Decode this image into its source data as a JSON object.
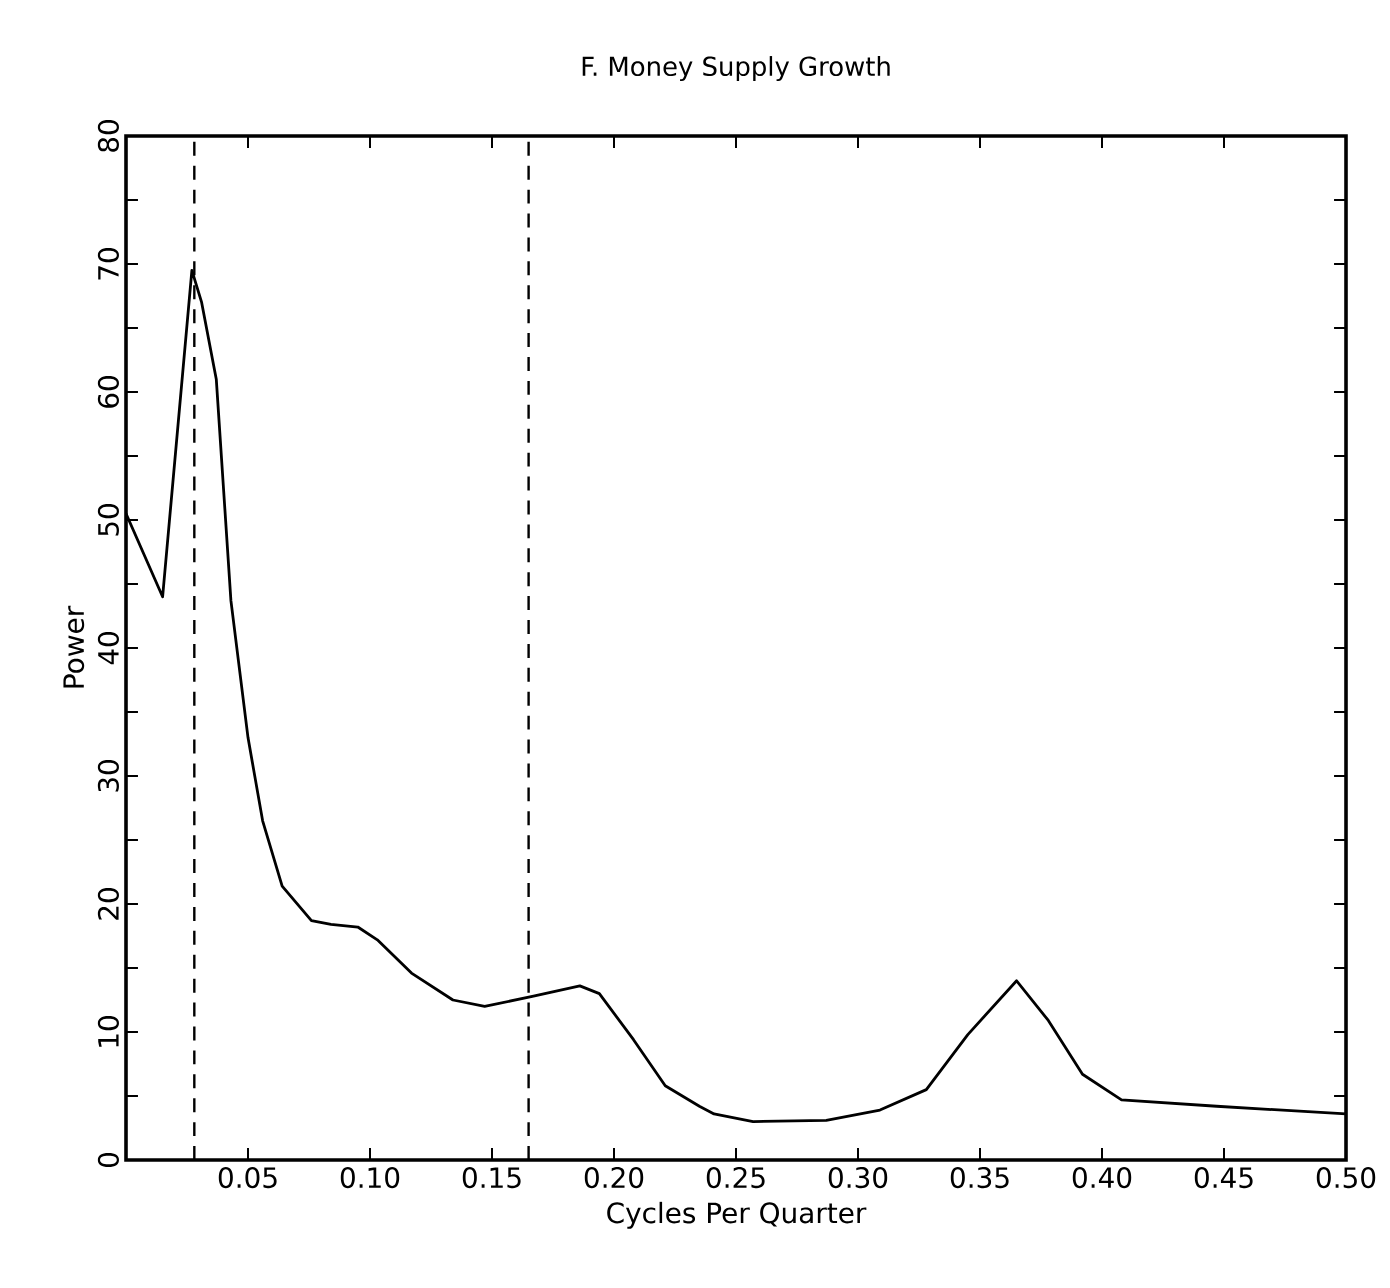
{
  "chart_data": {
    "type": "line",
    "title": "F. Money Supply Growth",
    "xlabel": "Cycles Per Quarter",
    "ylabel": "Power",
    "x": [
      0,
      0.015,
      0.027,
      0.031,
      0.037,
      0.043,
      0.05,
      0.056,
      0.064,
      0.076,
      0.084,
      0.095,
      0.103,
      0.117,
      0.134,
      0.147,
      0.167,
      0.186,
      0.194,
      0.208,
      0.221,
      0.235,
      0.241,
      0.257,
      0.287,
      0.309,
      0.328,
      0.345,
      0.365,
      0.378,
      0.392,
      0.408,
      0.447,
      0.5
    ],
    "series": [
      {
        "color": "#000000",
        "values": [
          50.5,
          44,
          69.5,
          67,
          61,
          43.7,
          33,
          26.5,
          21.4,
          18.7,
          18.4,
          18.2,
          17.2,
          14.6,
          12.5,
          12,
          12.8,
          13.6,
          13,
          9.4,
          5.8,
          4.2,
          3.6,
          3.0,
          3.1,
          3.9,
          5.5,
          9.8,
          14,
          10.9,
          6.7,
          4.7,
          4.2,
          3.6
        ]
      }
    ],
    "xlim": [
      0,
      0.5
    ],
    "ylim": [
      0,
      80
    ],
    "xticks": [
      0.05,
      {
        "value": 0.1,
        "label": "0.10"
      },
      0.15,
      {
        "value": 0.2,
        "label": "0.20"
      },
      0.25,
      {
        "value": 0.3,
        "label": "0.30"
      },
      0.35,
      {
        "value": 0.4,
        "label": "0.40"
      },
      0.45,
      {
        "value": 0.5,
        "label": "0.50"
      }
    ],
    "yticks": [
      0,
      {
        "value": 5,
        "label": null
      },
      10,
      {
        "value": 15,
        "label": null
      },
      20,
      {
        "value": 25,
        "label": null
      },
      30,
      {
        "value": 35,
        "label": null
      },
      40,
      {
        "value": 45,
        "label": null
      },
      50,
      {
        "value": 55,
        "label": null
      },
      60,
      {
        "value": 65,
        "label": null
      },
      70,
      {
        "value": 75,
        "label": null
      },
      80
    ],
    "ref_lines": [
      {
        "axis": "x",
        "value": 0.028,
        "line_style": "dashed"
      },
      {
        "axis": "x",
        "value": 0.165,
        "line_style": "dashed"
      }
    ],
    "grid": false,
    "marker": "none",
    "line_style": "solid"
  }
}
